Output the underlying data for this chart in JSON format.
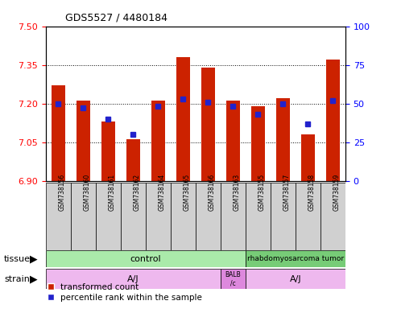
{
  "title": "GDS5527 / 4480184",
  "samples": [
    "GSM738156",
    "GSM738160",
    "GSM738161",
    "GSM738162",
    "GSM738164",
    "GSM738165",
    "GSM738166",
    "GSM738163",
    "GSM738155",
    "GSM738157",
    "GSM738158",
    "GSM738159"
  ],
  "red_values": [
    7.27,
    7.21,
    7.13,
    7.06,
    7.21,
    7.38,
    7.34,
    7.21,
    7.19,
    7.22,
    7.08,
    7.37
  ],
  "blue_values": [
    50,
    47,
    40,
    30,
    48,
    53,
    51,
    48,
    43,
    50,
    37,
    52
  ],
  "y_min": 6.9,
  "y_max": 7.5,
  "y_ticks": [
    6.9,
    7.05,
    7.2,
    7.35,
    7.5
  ],
  "y2_ticks": [
    0,
    25,
    50,
    75,
    100
  ],
  "bar_color": "#cc2200",
  "dot_color": "#2222cc",
  "tissue_control_color": "#aaddaa",
  "tissue_tumor_color": "#88cc88",
  "strain_aj_color": "#ddaadd",
  "strain_balb_color": "#dd88dd",
  "tissue_labels": [
    "control",
    "rhabdomyosarcoma tumor"
  ],
  "strain_labels": [
    "A/J",
    "BALB\n/c",
    "A/J"
  ],
  "control_count": 8,
  "tumor_count": 4,
  "legend_red": "transformed count",
  "legend_blue": "percentile rank within the sample"
}
